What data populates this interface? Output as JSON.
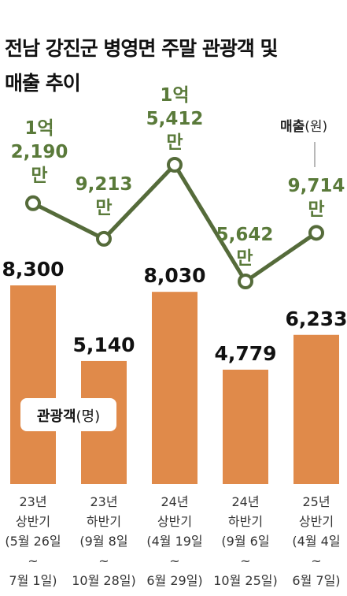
{
  "title_lines": [
    "전남 강진군 병영면 주말 관광객 및",
    "매출 추이"
  ],
  "colors": {
    "bar": "#e08a4a",
    "line": "#556b3a",
    "line_label": "#5a7a3a",
    "value_label": "#111111",
    "axis_text": "#333333"
  },
  "legend": {
    "sales": {
      "bold": "매출",
      "unit": "(원)"
    },
    "visitors": {
      "bold": "관광객",
      "unit": "(명)"
    }
  },
  "chart_data": {
    "type": "bar",
    "categories": [
      [
        "23년",
        "상반기",
        "(5월 26일",
        "~",
        "7월 1일)"
      ],
      [
        "23년",
        "하반기",
        "(9월 8일",
        "~",
        "10월 28일)"
      ],
      [
        "24년",
        "상반기",
        "(4월 19일",
        "~",
        "6월 29일)"
      ],
      [
        "24년",
        "하반기",
        "(9월 6일",
        "~",
        "10월 25일)"
      ],
      [
        "25년",
        "상반기",
        "(4월 4일",
        "~",
        "6월 7일)"
      ]
    ],
    "series": [
      {
        "name": "관광객(명)",
        "type": "bar",
        "values": [
          8300,
          5140,
          8030,
          4779,
          6233
        ],
        "labels": [
          "8,300",
          "5,140",
          "8,030",
          "4,779",
          "6,233"
        ]
      },
      {
        "name": "매출(원)",
        "type": "line",
        "values": [
          121900000,
          92130000,
          154120000,
          56420000,
          97140000
        ],
        "labels": [
          [
            "1억",
            "2,190",
            "만"
          ],
          [
            "9,213",
            "만"
          ],
          [
            "1억",
            "5,412",
            "만"
          ],
          [
            "5,642",
            "만"
          ],
          [
            "9,714",
            "만"
          ]
        ]
      }
    ]
  }
}
